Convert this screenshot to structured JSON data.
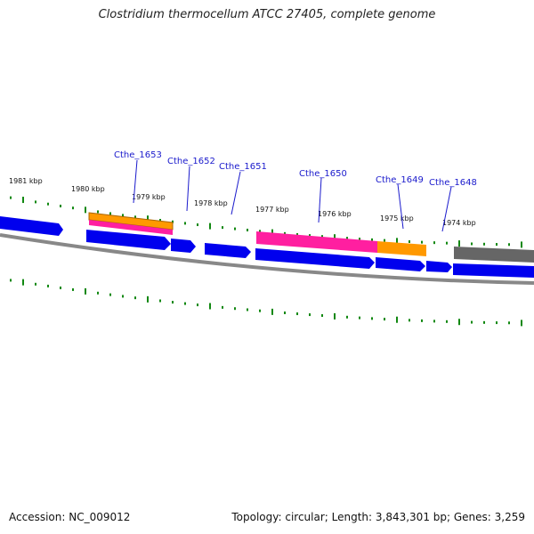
{
  "title": "Clostridium thermocellum ATCC 27405, complete genome",
  "footer": {
    "accession": "Accession: NC_009012",
    "summary": "Topology: circular; Length: 3,843,301 bp; Genes: 3,259"
  },
  "colors": {
    "gene_forward": "#0000ee",
    "feature_orange": "#ff9900",
    "feature_pink": "#ff1fa0",
    "feature_gray": "#666666",
    "backbone": "#888888",
    "ticks": "#008800",
    "gene_label": "#1a1acc"
  },
  "kbp_labels": [
    "1981 kbp",
    "1980 kbp",
    "1979 kbp",
    "1978 kbp",
    "1977 kbp",
    "1976 kbp",
    "1975 kbp",
    "1974 kbp"
  ],
  "gene_labels": [
    "Cthe_1653",
    "Cthe_1652",
    "Cthe_1651",
    "Cthe_1650",
    "Cthe_1649",
    "Cthe_1648"
  ]
}
